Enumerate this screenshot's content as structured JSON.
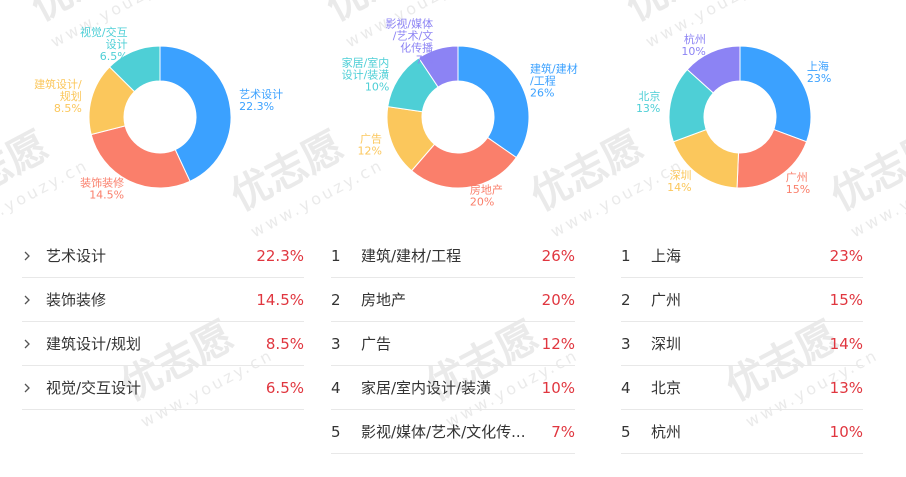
{
  "watermark": {
    "brand": "优志愿",
    "url": "www.youzy.cn"
  },
  "chart_data": [
    {
      "type": "pie",
      "donut": true,
      "slices": [
        {
          "label": "艺术设计",
          "label_lines": [
            "艺术设计"
          ],
          "value": 22.3,
          "display": "22.3%",
          "color": "#3ba1ff"
        },
        {
          "label": "装饰装修",
          "label_lines": [
            "装饰装修"
          ],
          "value": 14.5,
          "display": "14.5%",
          "color": "#fa7f6b"
        },
        {
          "label": "建筑设计/规划",
          "label_lines": [
            "建筑设计/",
            "规划"
          ],
          "value": 8.5,
          "display": "8.5%",
          "color": "#fbc75c"
        },
        {
          "label": "视觉/交互设计",
          "label_lines": [
            "视觉/交互",
            "设计"
          ],
          "value": 6.5,
          "display": "6.5%",
          "color": "#4ecfd6"
        }
      ]
    },
    {
      "type": "pie",
      "donut": true,
      "slices": [
        {
          "label": "建筑/建材/工程",
          "label_lines": [
            "建筑/建材",
            "/工程"
          ],
          "value": 26,
          "display": "26%",
          "color": "#3ba1ff"
        },
        {
          "label": "房地产",
          "label_lines": [
            "房地产"
          ],
          "value": 20,
          "display": "20%",
          "color": "#fa7f6b"
        },
        {
          "label": "广告",
          "label_lines": [
            "广告"
          ],
          "value": 12,
          "display": "12%",
          "color": "#fbc75c"
        },
        {
          "label": "家居/室内设计/装潢",
          "label_lines": [
            "家居/室内",
            "设计/装潢"
          ],
          "value": 10,
          "display": "10%",
          "color": "#4ecfd6"
        },
        {
          "label": "影视/媒体/艺术/文化传播",
          "label_lines": [
            "影视/媒体",
            "/艺术/文",
            "化传播"
          ],
          "value": 7,
          "display": "7%",
          "color": "#8c83f4"
        }
      ]
    },
    {
      "type": "pie",
      "donut": true,
      "slices": [
        {
          "label": "上海",
          "label_lines": [
            "上海"
          ],
          "value": 23,
          "display": "23%",
          "color": "#3ba1ff"
        },
        {
          "label": "广州",
          "label_lines": [
            "广州"
          ],
          "value": 15,
          "display": "15%",
          "color": "#fa7f6b"
        },
        {
          "label": "深圳",
          "label_lines": [
            "深圳"
          ],
          "value": 14,
          "display": "14%",
          "color": "#fbc75c"
        },
        {
          "label": "北京",
          "label_lines": [
            "北京"
          ],
          "value": 13,
          "display": "13%",
          "color": "#4ecfd6"
        },
        {
          "label": "杭州",
          "label_lines": [
            "杭州"
          ],
          "value": 10,
          "display": "10%",
          "color": "#8c83f4"
        }
      ]
    }
  ],
  "lists": [
    {
      "marker": "chevron-right-icon",
      "rows": [
        {
          "name": "艺术设计",
          "pct": "22.3%"
        },
        {
          "name": "装饰装修",
          "pct": "14.5%"
        },
        {
          "name": "建筑设计/规划",
          "pct": "8.5%"
        },
        {
          "name": "视觉/交互设计",
          "pct": "6.5%"
        }
      ]
    },
    {
      "marker": "rank",
      "rows": [
        {
          "rank": "1",
          "name": "建筑/建材/工程",
          "pct": "26%"
        },
        {
          "rank": "2",
          "name": "房地产",
          "pct": "20%"
        },
        {
          "rank": "3",
          "name": "广告",
          "pct": "12%"
        },
        {
          "rank": "4",
          "name": "家居/室内设计/装潢",
          "pct": "10%"
        },
        {
          "rank": "5",
          "name": "影视/媒体/艺术/文化传...",
          "pct": "7%"
        }
      ]
    },
    {
      "marker": "rank",
      "rows": [
        {
          "rank": "1",
          "name": "上海",
          "pct": "23%"
        },
        {
          "rank": "2",
          "name": "广州",
          "pct": "15%"
        },
        {
          "rank": "3",
          "name": "深圳",
          "pct": "14%"
        },
        {
          "rank": "4",
          "name": "北京",
          "pct": "13%"
        },
        {
          "rank": "5",
          "name": "杭州",
          "pct": "10%"
        }
      ]
    }
  ]
}
